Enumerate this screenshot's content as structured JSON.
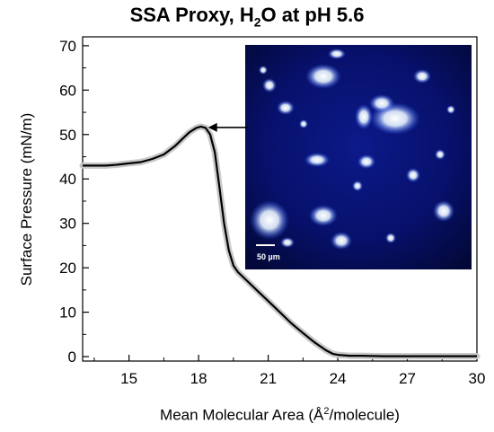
{
  "chart_data": {
    "type": "line",
    "title_main": "SSA Proxy, H",
    "title_sub": "2",
    "title_rest": "O at pH 5.6",
    "ylabel": "Surface Pressure (mN/m)",
    "xlabel_pre": "Mean Molecular Area (Å",
    "xlabel_sup": "2",
    "xlabel_post": "/molecule)",
    "xlim": [
      13,
      30
    ],
    "ylim": [
      -1,
      72
    ],
    "xticks": [
      15,
      18,
      21,
      24,
      27,
      30
    ],
    "yticks": [
      0,
      10,
      20,
      30,
      40,
      50,
      60,
      70
    ],
    "grid": false,
    "line_color": "#000000",
    "band_color": "#c8c8c8",
    "series": [
      {
        "x": [
          13,
          13.5,
          14,
          14.5,
          15,
          15.5,
          16,
          16.5,
          17,
          17.3,
          17.6,
          17.9,
          18.1,
          18.3,
          18.5,
          18.7,
          18.9,
          19.1,
          19.3,
          19.5,
          19.7,
          20,
          20.5,
          21,
          21.5,
          22,
          22.5,
          23,
          23.5,
          23.8,
          24,
          24.5,
          25,
          26,
          27,
          28,
          29,
          30
        ],
        "y": [
          43,
          43,
          43,
          43.2,
          43.5,
          43.8,
          44.5,
          45.5,
          47.5,
          49,
          50.5,
          51.5,
          51.8,
          51.5,
          50,
          46,
          38,
          30,
          24,
          20.5,
          19,
          17.5,
          15,
          12.5,
          10,
          7.5,
          5.3,
          3.2,
          1.4,
          0.6,
          0.4,
          0.2,
          0.2,
          0.1,
          0.1,
          0.1,
          0.1,
          0.1
        ]
      }
    ],
    "inset": {
      "scale_label": "50 µm",
      "arrow_target": {
        "x": 18.1,
        "y": 51.8
      }
    }
  }
}
